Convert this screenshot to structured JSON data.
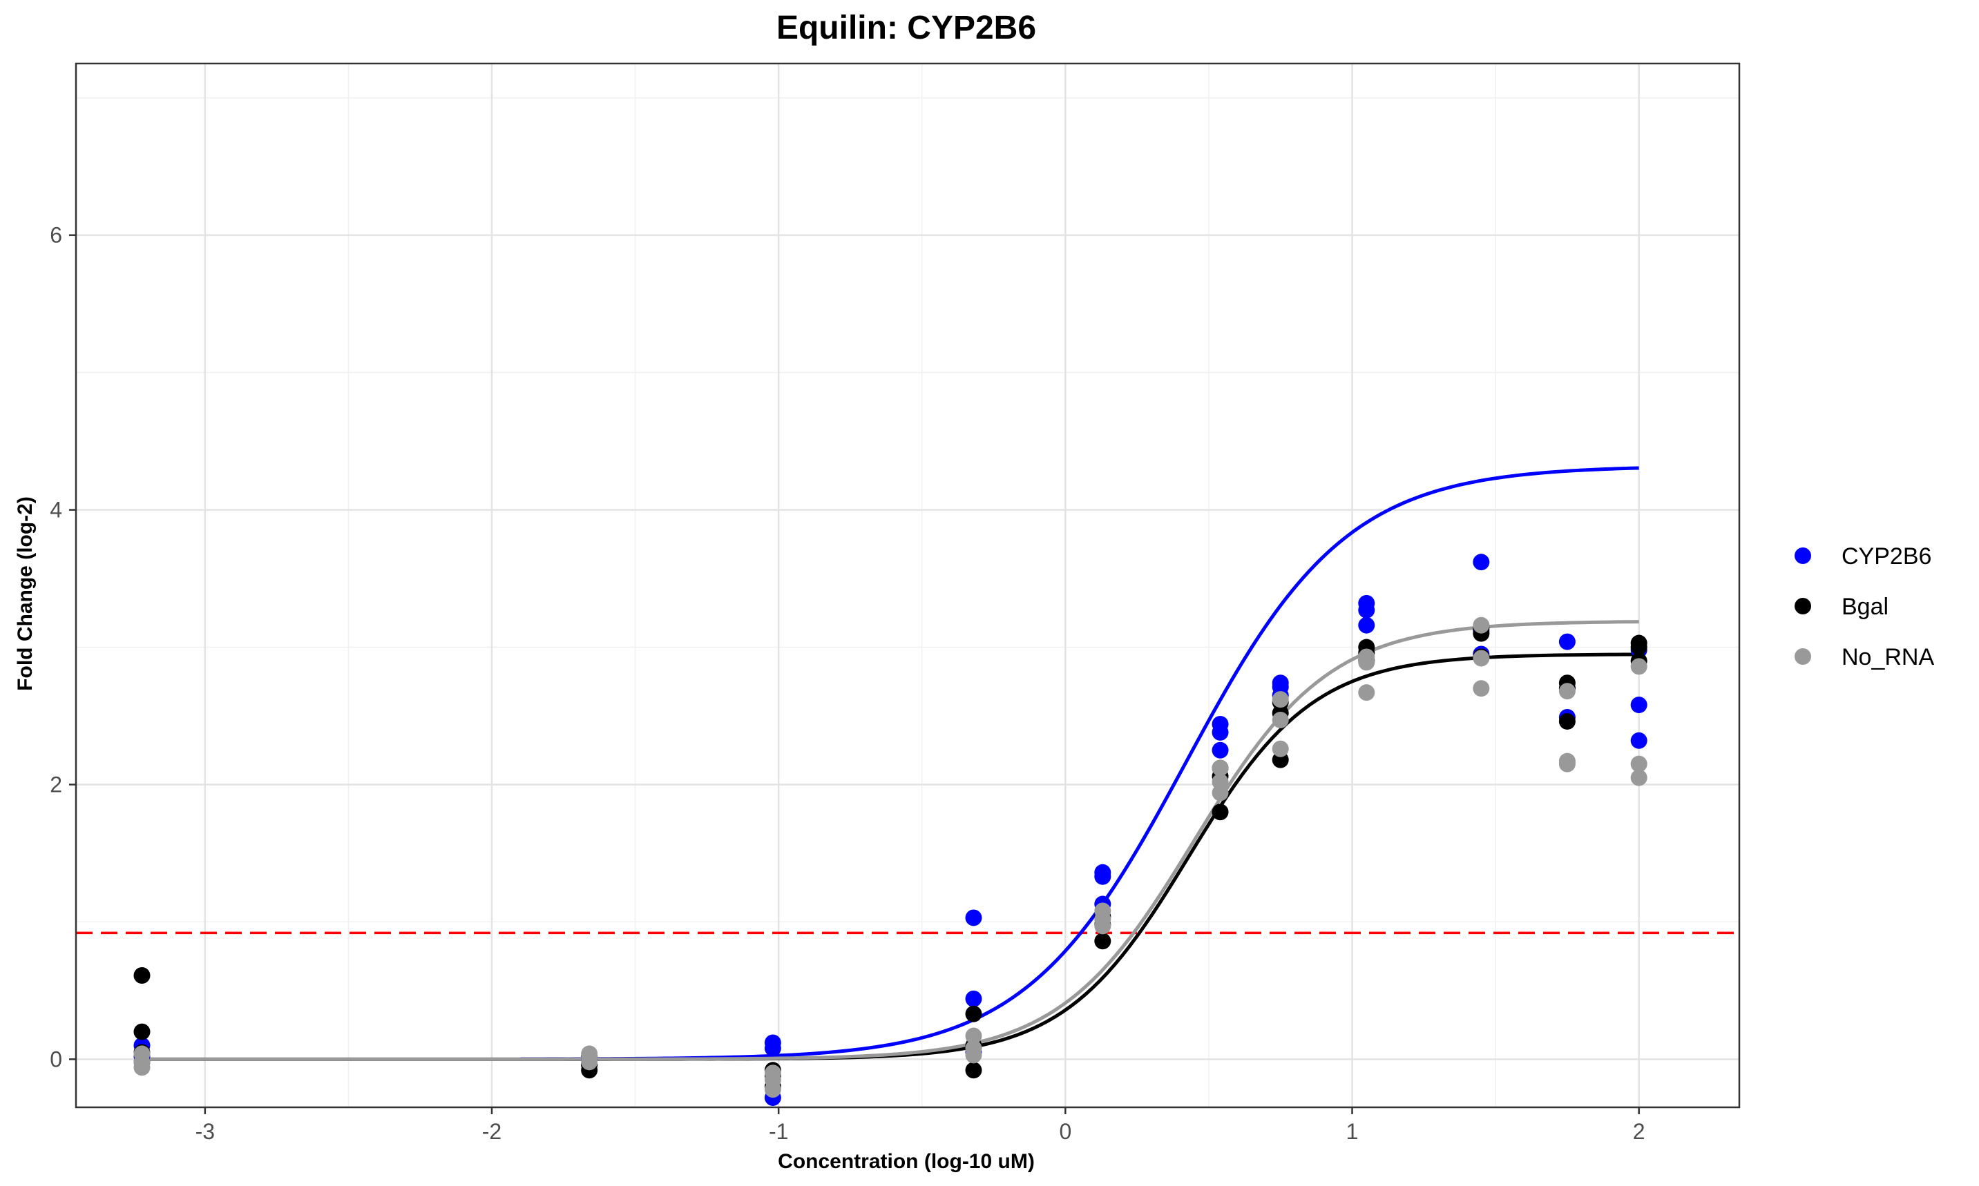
{
  "chart_data": {
    "type": "scatter",
    "title": "Equilin: CYP2B6",
    "xlabel": "Concentration (log-10 uM)",
    "ylabel": "Fold Change (log-2)",
    "xlim": [
      -3.45,
      2.35
    ],
    "ylim": [
      -0.35,
      7.25
    ],
    "x_ticks": [
      -3,
      -2,
      -1,
      0,
      1,
      2
    ],
    "y_ticks": [
      0,
      2,
      4,
      6
    ],
    "x_tick_labels": [
      "-3",
      "-2",
      "-1",
      "0",
      "1",
      "2"
    ],
    "y_tick_labels": [
      "0",
      "2",
      "4",
      "6"
    ],
    "grid": true,
    "legend_position": "right",
    "threshold": {
      "y": 0.92,
      "color": "#ff0000",
      "style": "dashed"
    },
    "series": [
      {
        "name": "CYP2B6",
        "color": "#0000ff",
        "points": [
          [
            -3.22,
            0.1
          ],
          [
            -3.22,
            0.02
          ],
          [
            -3.22,
            -0.02
          ],
          [
            -1.66,
            0.0
          ],
          [
            -1.66,
            -0.04
          ],
          [
            -1.66,
            0.02
          ],
          [
            -1.02,
            0.12
          ],
          [
            -1.02,
            0.08
          ],
          [
            -1.02,
            -0.28
          ],
          [
            -0.32,
            1.03
          ],
          [
            -0.32,
            0.44
          ],
          [
            -0.32,
            0.05
          ],
          [
            0.13,
            1.36
          ],
          [
            0.13,
            1.33
          ],
          [
            0.13,
            1.13
          ],
          [
            0.54,
            2.44
          ],
          [
            0.54,
            2.38
          ],
          [
            0.54,
            2.25
          ],
          [
            0.75,
            2.74
          ],
          [
            0.75,
            2.71
          ],
          [
            0.75,
            2.65
          ],
          [
            1.05,
            3.32
          ],
          [
            1.05,
            3.27
          ],
          [
            1.05,
            3.16
          ],
          [
            1.45,
            3.62
          ],
          [
            1.45,
            3.12
          ],
          [
            1.45,
            2.95
          ],
          [
            1.75,
            3.04
          ],
          [
            1.75,
            2.49
          ],
          [
            1.75,
            2.7
          ],
          [
            2.0,
            2.58
          ],
          [
            2.0,
            2.32
          ],
          [
            2.0,
            2.98
          ]
        ],
        "curve": {
          "bottom": 0.0,
          "top": 4.32,
          "ec50": 0.42,
          "slope": 1.55,
          "xmin": -1.9,
          "xmax": 2.0
        }
      },
      {
        "name": "Bgal",
        "color": "#000000",
        "points": [
          [
            -3.22,
            0.61
          ],
          [
            -3.22,
            0.2
          ],
          [
            -3.22,
            0.05
          ],
          [
            -1.66,
            -0.08
          ],
          [
            -1.66,
            -0.04
          ],
          [
            -1.66,
            0.02
          ],
          [
            -1.02,
            -0.08
          ],
          [
            -1.02,
            -0.12
          ],
          [
            -1.02,
            -0.2
          ],
          [
            -0.32,
            0.33
          ],
          [
            -0.32,
            -0.08
          ],
          [
            -0.32,
            0.1
          ],
          [
            0.13,
            0.86
          ],
          [
            0.13,
            1.04
          ],
          [
            0.13,
            0.98
          ],
          [
            0.54,
            1.8
          ],
          [
            0.54,
            2.06
          ],
          [
            0.54,
            2.12
          ],
          [
            0.75,
            2.18
          ],
          [
            0.75,
            2.52
          ],
          [
            0.75,
            2.6
          ],
          [
            1.05,
            3.0
          ],
          [
            1.05,
            2.96
          ],
          [
            1.05,
            2.9
          ],
          [
            1.45,
            3.1
          ],
          [
            1.45,
            3.14
          ],
          [
            1.45,
            2.93
          ],
          [
            1.75,
            2.74
          ],
          [
            1.75,
            2.46
          ],
          [
            1.75,
            2.7
          ],
          [
            2.0,
            3.03
          ],
          [
            2.0,
            2.9
          ],
          [
            2.0,
            3.0
          ]
        ],
        "curve": {
          "bottom": 0.0,
          "top": 2.95,
          "ec50": 0.43,
          "slope": 2.0,
          "xmin": -3.22,
          "xmax": 2.0
        }
      },
      {
        "name": "No_RNA",
        "color": "#999999",
        "points": [
          [
            -3.22,
            0.04
          ],
          [
            -3.22,
            -0.06
          ],
          [
            -3.22,
            -0.02
          ],
          [
            -1.66,
            0.04
          ],
          [
            -1.66,
            0.01
          ],
          [
            -1.66,
            -0.02
          ],
          [
            -1.02,
            -0.15
          ],
          [
            -1.02,
            -0.22
          ],
          [
            -1.02,
            -0.1
          ],
          [
            -0.32,
            0.17
          ],
          [
            -0.32,
            0.08
          ],
          [
            -0.32,
            0.03
          ],
          [
            0.13,
            1.08
          ],
          [
            0.13,
            1.02
          ],
          [
            0.13,
            0.97
          ],
          [
            0.54,
            2.12
          ],
          [
            0.54,
            2.02
          ],
          [
            0.54,
            1.94
          ],
          [
            0.75,
            2.62
          ],
          [
            0.75,
            2.47
          ],
          [
            0.75,
            2.26
          ],
          [
            1.05,
            2.93
          ],
          [
            1.05,
            2.89
          ],
          [
            1.05,
            2.67
          ],
          [
            1.45,
            3.16
          ],
          [
            1.45,
            2.92
          ],
          [
            1.45,
            2.7
          ],
          [
            1.75,
            2.68
          ],
          [
            1.75,
            2.17
          ],
          [
            1.75,
            2.15
          ],
          [
            2.0,
            2.86
          ],
          [
            2.0,
            2.15
          ],
          [
            2.0,
            2.05
          ]
        ],
        "curve": {
          "bottom": 0.0,
          "top": 3.19,
          "ec50": 0.45,
          "slope": 1.85,
          "xmin": -3.22,
          "xmax": 2.0
        }
      }
    ]
  }
}
